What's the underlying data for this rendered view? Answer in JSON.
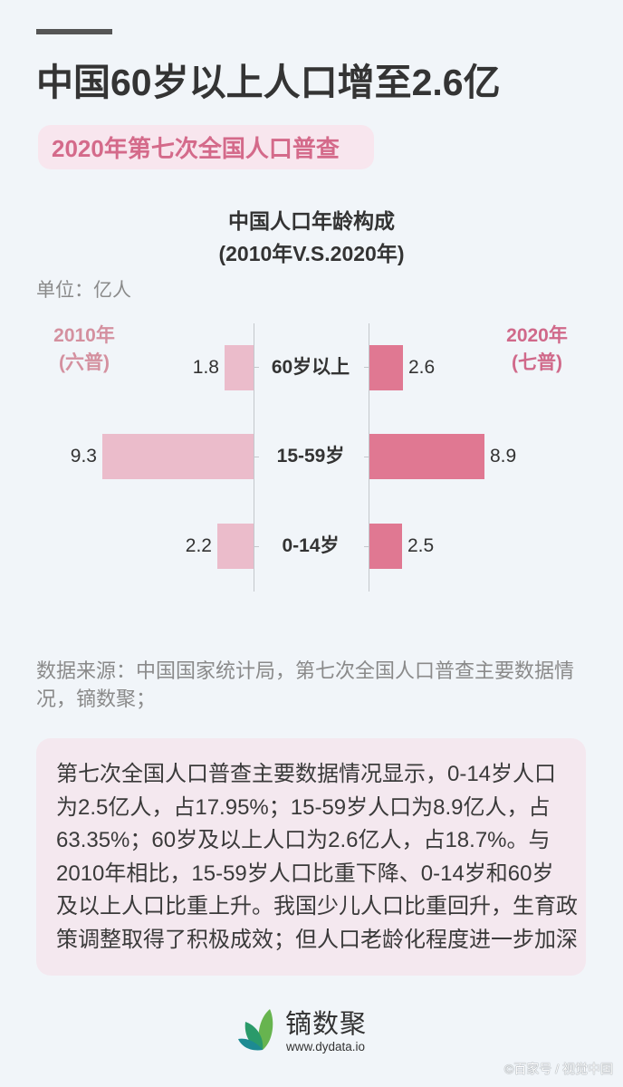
{
  "header": {
    "title": "中国60岁以上人口增至2.6亿",
    "subtitle": "2020年第七次全国人口普查"
  },
  "chart": {
    "title_line1": "中国人口年龄构成",
    "title_line2": "(2010年V.S.2020年)",
    "unit": "单位：亿人",
    "left_legend": {
      "year": "2010年",
      "note": "(六普)"
    },
    "right_legend": {
      "year": "2020年",
      "note": "(七普)"
    }
  },
  "chart_data": {
    "type": "bar",
    "orientation": "horizontal-butterfly",
    "title": "中国人口年龄构成 (2010年V.S.2020年)",
    "unit": "亿人",
    "categories": [
      "60岁以上",
      "15-59岁",
      "0-14岁"
    ],
    "series": [
      {
        "name": "2010年(六普)",
        "values": [
          1.8,
          9.3,
          2.2
        ],
        "labels": [
          "1.8",
          "9.3",
          "2.2"
        ],
        "color": "#ebbccb",
        "side": "left"
      },
      {
        "name": "2020年(七普)",
        "values": [
          2.6,
          8.9,
          2.5
        ],
        "labels": [
          "2.6",
          "8.9",
          "2.5"
        ],
        "color": "#e07892",
        "side": "right"
      }
    ],
    "xlabel": "",
    "ylabel": "",
    "grid": false,
    "legend_position": "top-left (2010) / top-right (2020)"
  },
  "source": {
    "line1": "数据来源：中国国家统计局，第七次全国人口普查主要数据情",
    "line2": "况，镝数聚；"
  },
  "description": {
    "lines": [
      "第七次全国人口普查主要数据情况显示，0-14岁人口",
      "为2.5亿人，占17.95%；15-59岁人口为8.9亿人，占",
      "63.35%；60岁及以上人口为2.6亿人，占18.7%。与",
      "2010年相比，15-59岁人口比重下降、0-14岁和60岁",
      "及以上人口比重上升。我国少儿人口比重回升，生育政",
      "策调整取得了积极成效；但人口老龄化程度进一步加深"
    ]
  },
  "footer": {
    "brand_name": "镝数聚",
    "brand_url": "www.dydata.io",
    "watermark": "©百家号 / 视觉中国"
  },
  "colors": {
    "background": "#f1f5f9",
    "accent_pink": "#d46a8a",
    "bar_2010": "#ebbccb",
    "bar_2020": "#e07892",
    "description_box": "#f4e8ef"
  }
}
